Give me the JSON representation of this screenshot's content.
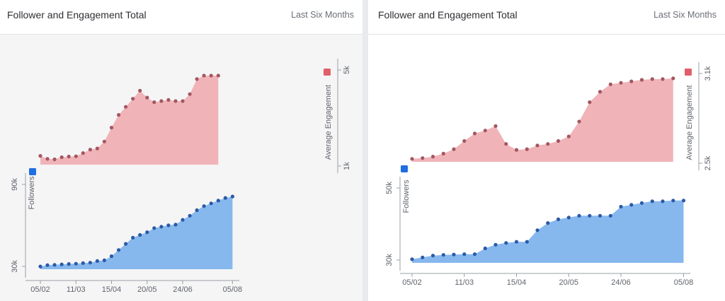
{
  "panels": [
    {
      "title": "Follower and Engagement Total",
      "range_label": "Last Six Months"
    },
    {
      "title": "Follower and Engagement Total",
      "range_label": "Last Six Months"
    }
  ],
  "colors": {
    "engagement_fill": "#f0b4b8",
    "engagement_point": "#a35761",
    "engagement_legend": "#e05f6a",
    "followers_fill": "#86b8ee",
    "followers_point": "#2b5aa6",
    "followers_legend": "#1f6fe0",
    "axis": "#9aa0a6"
  },
  "chart_data": [
    {
      "type": "area",
      "x_ticks": [
        "05/02",
        "11/03",
        "15/04",
        "20/05",
        "24/06",
        "05/08"
      ],
      "x_tick_positions": [
        0,
        5,
        10,
        15,
        20,
        27
      ],
      "series": [
        {
          "name": "Average Engagement",
          "axis_ticks": [
            "5k",
            "1k"
          ],
          "ylim": [
            800,
            5200
          ],
          "values": [
            1180,
            1050,
            1030,
            1120,
            1150,
            1160,
            1300,
            1450,
            1500,
            1800,
            2400,
            2950,
            3300,
            3650,
            4000,
            3700,
            3500,
            3550,
            3600,
            3550,
            3550,
            3850,
            4500,
            4650,
            4650,
            4650
          ]
        },
        {
          "name": "Followers",
          "axis_ticks": [
            "90k",
            "30k"
          ],
          "ylim": [
            28000,
            96000
          ],
          "values": [
            30000,
            31000,
            31200,
            31500,
            31800,
            32000,
            32500,
            32800,
            34000,
            34500,
            37500,
            42000,
            46500,
            51000,
            53000,
            55000,
            58000,
            59000,
            60000,
            60500,
            64000,
            67000,
            71000,
            74000,
            76000,
            78000,
            80000,
            81000
          ]
        }
      ]
    },
    {
      "type": "area",
      "x_ticks": [
        "05/02",
        "11/03",
        "15/04",
        "20/05",
        "24/06",
        "05/08"
      ],
      "x_tick_positions": [
        0,
        5,
        10,
        15,
        20,
        26
      ],
      "series": [
        {
          "name": "Average Engagement",
          "axis_ticks": [
            "3.1k",
            "2.5k"
          ],
          "ylim": [
            2480,
            3120
          ],
          "values": [
            2500,
            2505,
            2515,
            2535,
            2565,
            2620,
            2670,
            2690,
            2720,
            2600,
            2560,
            2565,
            2590,
            2600,
            2620,
            2650,
            2750,
            2880,
            2950,
            3000,
            3010,
            3020,
            3030,
            3035,
            3035,
            3040
          ]
        },
        {
          "name": "Followers",
          "axis_ticks": [
            "50k",
            "30k"
          ],
          "ylim": [
            29000,
            52000
          ],
          "values": [
            30000,
            30500,
            31000,
            31200,
            31300,
            31400,
            31400,
            33000,
            34000,
            34500,
            34800,
            34800,
            38000,
            40000,
            41000,
            41500,
            42000,
            42000,
            42000,
            42000,
            44500,
            45000,
            45500,
            46000,
            46000,
            46200,
            46200
          ]
        }
      ]
    }
  ]
}
